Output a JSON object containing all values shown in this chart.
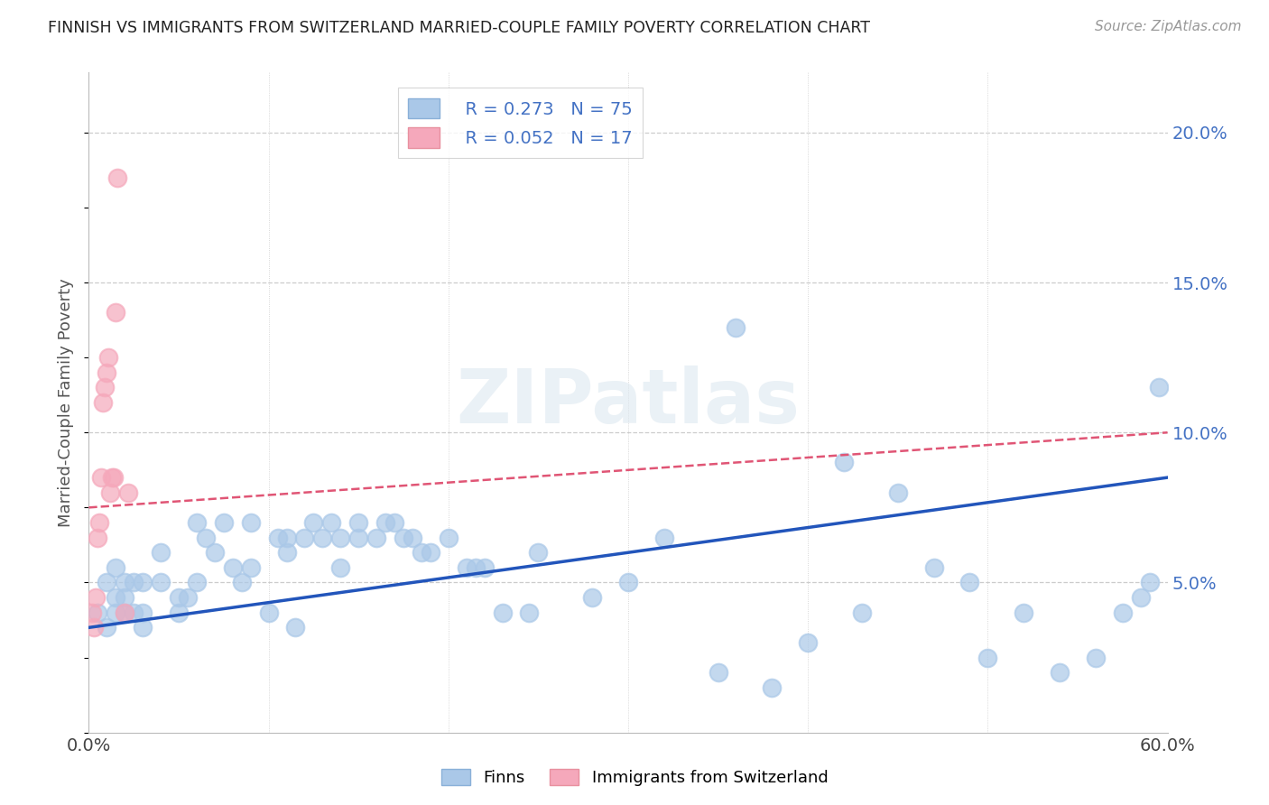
{
  "title": "FINNISH VS IMMIGRANTS FROM SWITZERLAND MARRIED-COUPLE FAMILY POVERTY CORRELATION CHART",
  "source": "Source: ZipAtlas.com",
  "ylabel": "Married-Couple Family Poverty",
  "xlim": [
    0.0,
    0.6
  ],
  "ylim": [
    0.0,
    0.22
  ],
  "ytick_vals": [
    0.05,
    0.1,
    0.15,
    0.2
  ],
  "ytick_labels": [
    "5.0%",
    "10.0%",
    "15.0%",
    "20.0%"
  ],
  "xtick_vals": [
    0.0,
    0.1,
    0.2,
    0.3,
    0.4,
    0.5,
    0.6
  ],
  "xtick_labels": [
    "0.0%",
    "",
    "",
    "",
    "",
    "",
    "60.0%"
  ],
  "watermark": "ZIPatlas",
  "legend_r1": "R = 0.273",
  "legend_n1": "N = 75",
  "legend_r2": "R = 0.052",
  "legend_n2": "N = 17",
  "finns_color": "#aac8e8",
  "swiss_color": "#f5a8bb",
  "finns_line_color": "#2255bb",
  "swiss_line_color": "#e05575",
  "background_color": "#ffffff",
  "grid_color": "#cccccc",
  "finns_x": [
    0.005,
    0.01,
    0.01,
    0.015,
    0.015,
    0.015,
    0.02,
    0.02,
    0.02,
    0.025,
    0.025,
    0.03,
    0.03,
    0.03,
    0.04,
    0.04,
    0.05,
    0.05,
    0.055,
    0.06,
    0.06,
    0.065,
    0.07,
    0.075,
    0.08,
    0.085,
    0.09,
    0.09,
    0.1,
    0.105,
    0.11,
    0.11,
    0.115,
    0.12,
    0.125,
    0.13,
    0.135,
    0.14,
    0.14,
    0.15,
    0.15,
    0.16,
    0.165,
    0.17,
    0.175,
    0.18,
    0.185,
    0.19,
    0.2,
    0.21,
    0.215,
    0.22,
    0.23,
    0.245,
    0.25,
    0.28,
    0.3,
    0.32,
    0.35,
    0.36,
    0.38,
    0.4,
    0.42,
    0.43,
    0.45,
    0.47,
    0.49,
    0.5,
    0.52,
    0.54,
    0.56,
    0.575,
    0.585,
    0.59,
    0.595
  ],
  "finns_y": [
    0.04,
    0.035,
    0.05,
    0.04,
    0.045,
    0.055,
    0.04,
    0.045,
    0.05,
    0.04,
    0.05,
    0.035,
    0.04,
    0.05,
    0.05,
    0.06,
    0.04,
    0.045,
    0.045,
    0.05,
    0.07,
    0.065,
    0.06,
    0.07,
    0.055,
    0.05,
    0.055,
    0.07,
    0.04,
    0.065,
    0.06,
    0.065,
    0.035,
    0.065,
    0.07,
    0.065,
    0.07,
    0.065,
    0.055,
    0.065,
    0.07,
    0.065,
    0.07,
    0.07,
    0.065,
    0.065,
    0.06,
    0.06,
    0.065,
    0.055,
    0.055,
    0.055,
    0.04,
    0.04,
    0.06,
    0.045,
    0.05,
    0.065,
    0.02,
    0.135,
    0.015,
    0.03,
    0.09,
    0.04,
    0.08,
    0.055,
    0.05,
    0.025,
    0.04,
    0.02,
    0.025,
    0.04,
    0.045,
    0.05,
    0.115
  ],
  "swiss_x": [
    0.002,
    0.003,
    0.004,
    0.005,
    0.006,
    0.007,
    0.008,
    0.009,
    0.01,
    0.011,
    0.012,
    0.013,
    0.014,
    0.015,
    0.016,
    0.02,
    0.022
  ],
  "swiss_y": [
    0.04,
    0.035,
    0.045,
    0.065,
    0.07,
    0.085,
    0.11,
    0.115,
    0.12,
    0.125,
    0.08,
    0.085,
    0.085,
    0.14,
    0.185,
    0.04,
    0.08
  ],
  "blue_line_x": [
    0.0,
    0.6
  ],
  "blue_line_y": [
    0.035,
    0.085
  ],
  "pink_line_x": [
    0.0,
    0.6
  ],
  "pink_line_y": [
    0.075,
    0.1
  ]
}
